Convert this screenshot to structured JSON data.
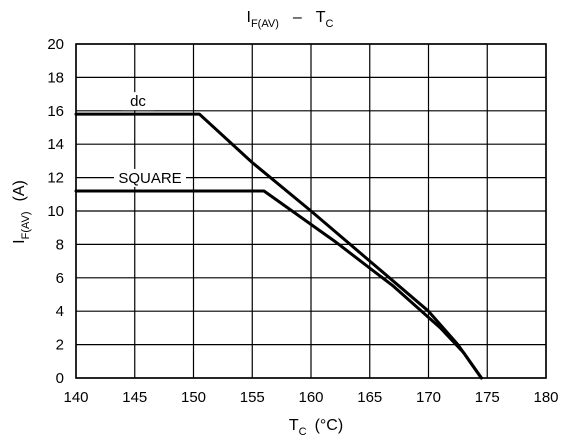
{
  "chart_data": {
    "type": "line",
    "title": {
      "main": "I",
      "sub": "F(AV)",
      "dash": "–",
      "main2": "T",
      "sub2": "C"
    },
    "xlabel": {
      "main": "T",
      "sub": "C",
      "unit": "(°C)"
    },
    "ylabel": {
      "main": "I",
      "sub": "F(AV)",
      "unit": "(A)"
    },
    "xlim": [
      140,
      180
    ],
    "ylim": [
      0,
      20
    ],
    "x_ticks": [
      140,
      145,
      150,
      155,
      160,
      165,
      170,
      175,
      180
    ],
    "y_ticks": [
      0,
      2,
      4,
      6,
      8,
      10,
      12,
      14,
      16,
      18,
      20
    ],
    "grid": true,
    "series": [
      {
        "name": "dc",
        "x": [
          140,
          150.5,
          155,
          160,
          165,
          170,
          172.5,
          174.5
        ],
        "y": [
          15.8,
          15.8,
          12.9,
          10.0,
          7.0,
          4.0,
          2.0,
          0
        ]
      },
      {
        "name": "SQUARE",
        "x": [
          140,
          156,
          162,
          167,
          171,
          173,
          174.5
        ],
        "y": [
          11.2,
          11.2,
          8.2,
          5.5,
          3.0,
          1.5,
          0
        ]
      }
    ]
  }
}
